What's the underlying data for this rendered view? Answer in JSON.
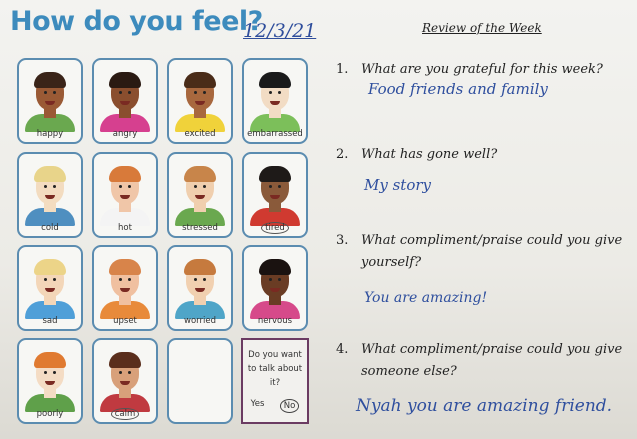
{
  "worksheet": {
    "title": "How do you feel?",
    "date": "12/3/21",
    "emotions": [
      {
        "label": "happy",
        "skin": "#9a5a35",
        "hair": "#3a2418",
        "shirt": "#6aa84f",
        "circled": false
      },
      {
        "label": "angry",
        "skin": "#8a4e2e",
        "hair": "#2a1a12",
        "shirt": "#d6408f",
        "circled": false
      },
      {
        "label": "excited",
        "skin": "#a8683e",
        "hair": "#4a2c18",
        "shirt": "#f0d23a",
        "circled": false
      },
      {
        "label": "embarrassed",
        "skin": "#f2dcc4",
        "hair": "#1a1a1a",
        "shirt": "#7cbf5a",
        "circled": false
      },
      {
        "label": "cold",
        "skin": "#f3dcc0",
        "hair": "#e8d48a",
        "shirt": "#4f8fc0",
        "circled": false
      },
      {
        "label": "hot",
        "skin": "#f0c6a8",
        "hair": "#d87a3a",
        "shirt": "#f4f4f4",
        "circled": false
      },
      {
        "label": "stressed",
        "skin": "#f0cfae",
        "hair": "#c8854a",
        "shirt": "#6aa84f",
        "circled": false
      },
      {
        "label": "tired",
        "skin": "#8a5a3a",
        "hair": "#1e1a18",
        "shirt": "#d03a30",
        "circled": true
      },
      {
        "label": "sad",
        "skin": "#f3d6b8",
        "hair": "#ecd488",
        "shirt": "#4f9fd8",
        "circled": false
      },
      {
        "label": "upset",
        "skin": "#f0c0a0",
        "hair": "#d8844a",
        "shirt": "#e88a3a",
        "circled": false
      },
      {
        "label": "worried",
        "skin": "#f1d0b0",
        "hair": "#c67a3e",
        "shirt": "#4fa5c8",
        "circled": false
      },
      {
        "label": "nervous",
        "skin": "#6a3c24",
        "hair": "#1a1210",
        "shirt": "#d64a8a",
        "circled": false
      },
      {
        "label": "poorly",
        "skin": "#f4dcc4",
        "hair": "#e07a30",
        "shirt": "#5fa04a",
        "circled": false
      },
      {
        "label": "calm",
        "skin": "#d8a07a",
        "hair": "#5a2e1c",
        "shirt": "#c03a40",
        "circled": true
      }
    ],
    "talk_box": {
      "question": "Do you want to talk about it?",
      "yes": "Yes",
      "no": "No",
      "selected": "No"
    }
  },
  "review": {
    "title": "Review of the Week",
    "questions": [
      {
        "number": "1.",
        "text": "What are you grateful for this week?",
        "answer": "Food friends and family"
      },
      {
        "number": "2.",
        "text": "What has gone well?",
        "answer": "My story"
      },
      {
        "number": "3.",
        "text": "What compliment/praise could you give yourself?",
        "answer": "You are amazing!"
      },
      {
        "number": "4.",
        "text": "What compliment/praise could you give someone else?",
        "answer": "Nyah you are amazing friend."
      }
    ]
  },
  "colors": {
    "title": "#3d8bbd",
    "card_border": "#5b8cb0",
    "talk_border": "#6b3b62",
    "ink": "#2f4f9e"
  }
}
